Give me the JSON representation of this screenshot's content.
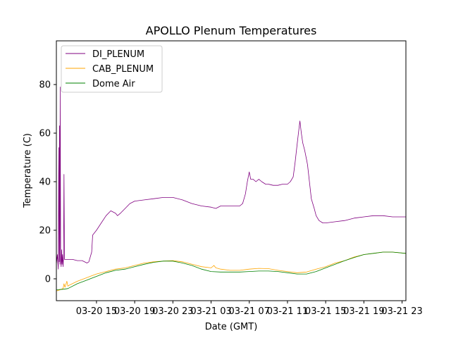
{
  "chart_data": {
    "type": "line",
    "title": "APOLLO Plenum Temperatures",
    "xlabel": "Date (GMT)",
    "ylabel": "Temperature (C)",
    "x_unit": "hours since 03-20 00:00 GMT",
    "xlim": [
      10.8,
      47.4
    ],
    "ylim": [
      -9,
      98
    ],
    "x_ticks": [
      {
        "x": 15,
        "label": "03-20 15"
      },
      {
        "x": 19,
        "label": "03-20 19"
      },
      {
        "x": 23,
        "label": "03-20 23"
      },
      {
        "x": 27,
        "label": "03-21 03"
      },
      {
        "x": 31,
        "label": "03-21 07"
      },
      {
        "x": 35,
        "label": "03-21 11"
      },
      {
        "x": 39,
        "label": "03-21 15"
      },
      {
        "x": 43,
        "label": "03-21 19"
      },
      {
        "x": 47,
        "label": "03-21 23"
      }
    ],
    "y_ticks": [
      {
        "y": 0,
        "label": "0"
      },
      {
        "y": 20,
        "label": "20"
      },
      {
        "y": 40,
        "label": "40"
      },
      {
        "y": 60,
        "label": "60"
      },
      {
        "y": 80,
        "label": "80"
      }
    ],
    "legend_position": "top-left",
    "series": [
      {
        "name": "DI_PLENUM",
        "color": "#800080",
        "points": [
          [
            10.8,
            6
          ],
          [
            10.9,
            10
          ],
          [
            11.0,
            4
          ],
          [
            11.05,
            54
          ],
          [
            11.1,
            7
          ],
          [
            11.13,
            63
          ],
          [
            11.17,
            6
          ],
          [
            11.2,
            79
          ],
          [
            11.25,
            8
          ],
          [
            11.3,
            5
          ],
          [
            11.35,
            12
          ],
          [
            11.4,
            6
          ],
          [
            11.45,
            10
          ],
          [
            11.5,
            5
          ],
          [
            11.55,
            9
          ],
          [
            11.6,
            43
          ],
          [
            11.65,
            8
          ],
          [
            11.8,
            8
          ],
          [
            12.5,
            8
          ],
          [
            13.0,
            7.5
          ],
          [
            13.5,
            7.5
          ],
          [
            14.0,
            6.5
          ],
          [
            14.2,
            7
          ],
          [
            14.5,
            11
          ],
          [
            14.6,
            18
          ],
          [
            15.0,
            20
          ],
          [
            15.5,
            23
          ],
          [
            16.0,
            26
          ],
          [
            16.5,
            28
          ],
          [
            17.0,
            27
          ],
          [
            17.2,
            26
          ],
          [
            17.5,
            27
          ],
          [
            18.0,
            29
          ],
          [
            18.5,
            31
          ],
          [
            19.0,
            32
          ],
          [
            20.0,
            32.5
          ],
          [
            21.0,
            33
          ],
          [
            22.0,
            33.5
          ],
          [
            23.0,
            33.5
          ],
          [
            24.0,
            32.5
          ],
          [
            25.0,
            31
          ],
          [
            26.0,
            30
          ],
          [
            27.0,
            29.5
          ],
          [
            27.5,
            29
          ],
          [
            28.0,
            30
          ],
          [
            29.0,
            30
          ],
          [
            30.0,
            30
          ],
          [
            30.3,
            31
          ],
          [
            30.6,
            35
          ],
          [
            30.8,
            40
          ],
          [
            31.0,
            44
          ],
          [
            31.15,
            41
          ],
          [
            31.4,
            41
          ],
          [
            31.7,
            40
          ],
          [
            32.0,
            41
          ],
          [
            32.3,
            40
          ],
          [
            32.7,
            39
          ],
          [
            33.0,
            39
          ],
          [
            33.5,
            38.5
          ],
          [
            34.0,
            38.5
          ],
          [
            34.5,
            39
          ],
          [
            35.0,
            39
          ],
          [
            35.3,
            40
          ],
          [
            35.6,
            42
          ],
          [
            35.8,
            48
          ],
          [
            36.0,
            55
          ],
          [
            36.15,
            60
          ],
          [
            36.3,
            65
          ],
          [
            36.45,
            60
          ],
          [
            36.6,
            56
          ],
          [
            36.8,
            53
          ],
          [
            37.0,
            49
          ],
          [
            37.1,
            47
          ],
          [
            37.3,
            40
          ],
          [
            37.5,
            33
          ],
          [
            37.8,
            29
          ],
          [
            38.0,
            26
          ],
          [
            38.3,
            24
          ],
          [
            38.7,
            23
          ],
          [
            39.0,
            23
          ],
          [
            40.0,
            23.5
          ],
          [
            41.0,
            24
          ],
          [
            42.0,
            25
          ],
          [
            43.0,
            25.5
          ],
          [
            44.0,
            26
          ],
          [
            45.0,
            26
          ],
          [
            46.0,
            25.5
          ],
          [
            47.4,
            25.5
          ]
        ]
      },
      {
        "name": "CAB_PLENUM",
        "color": "#ffa500",
        "points": [
          [
            10.8,
            -5
          ],
          [
            11.2,
            -4.5
          ],
          [
            11.5,
            -4
          ],
          [
            11.6,
            -2
          ],
          [
            11.7,
            -3.5
          ],
          [
            11.9,
            -1
          ],
          [
            12.0,
            -3
          ],
          [
            12.2,
            -2.5
          ],
          [
            13.0,
            -1
          ],
          [
            14.0,
            0.5
          ],
          [
            15.0,
            2
          ],
          [
            16.0,
            3
          ],
          [
            17.0,
            4
          ],
          [
            18.0,
            4.5
          ],
          [
            19.0,
            5.5
          ],
          [
            20.0,
            6.5
          ],
          [
            21.0,
            7
          ],
          [
            22.0,
            7.3
          ],
          [
            23.0,
            7.5
          ],
          [
            24.0,
            7
          ],
          [
            25.0,
            6
          ],
          [
            26.0,
            5
          ],
          [
            27.0,
            4.5
          ],
          [
            27.3,
            5.5
          ],
          [
            27.5,
            4.5
          ],
          [
            28.0,
            4
          ],
          [
            29.0,
            3.5
          ],
          [
            30.0,
            3.5
          ],
          [
            31.0,
            4
          ],
          [
            32.0,
            4.3
          ],
          [
            33.0,
            4.2
          ],
          [
            34.0,
            3.5
          ],
          [
            35.0,
            3
          ],
          [
            36.0,
            2.5
          ],
          [
            37.0,
            2.8
          ],
          [
            38.0,
            4
          ],
          [
            39.0,
            5
          ],
          [
            40.0,
            6.5
          ],
          [
            41.0,
            7.5
          ],
          [
            42.0,
            9
          ],
          [
            43.0,
            10
          ],
          [
            44.0,
            10.5
          ],
          [
            45.0,
            11
          ],
          [
            46.0,
            11
          ],
          [
            47.4,
            10.5
          ]
        ]
      },
      {
        "name": "Dome Air",
        "color": "#008000",
        "points": [
          [
            10.8,
            -4.5
          ],
          [
            11.5,
            -4.3
          ],
          [
            12.0,
            -4
          ],
          [
            13.0,
            -2
          ],
          [
            14.0,
            -0.5
          ],
          [
            15.0,
            1
          ],
          [
            16.0,
            2.5
          ],
          [
            17.0,
            3.5
          ],
          [
            18.0,
            4
          ],
          [
            19.0,
            5
          ],
          [
            20.0,
            6
          ],
          [
            21.0,
            6.8
          ],
          [
            22.0,
            7.3
          ],
          [
            23.0,
            7.3
          ],
          [
            24.0,
            6.5
          ],
          [
            25.0,
            5.5
          ],
          [
            26.0,
            4
          ],
          [
            27.0,
            3
          ],
          [
            28.0,
            2.8
          ],
          [
            29.0,
            2.8
          ],
          [
            30.0,
            2.8
          ],
          [
            31.0,
            3
          ],
          [
            32.0,
            3.2
          ],
          [
            33.0,
            3.2
          ],
          [
            34.0,
            3
          ],
          [
            35.0,
            2.5
          ],
          [
            36.0,
            2
          ],
          [
            37.0,
            2
          ],
          [
            38.0,
            3
          ],
          [
            39.0,
            4.5
          ],
          [
            40.0,
            6
          ],
          [
            41.0,
            7.5
          ],
          [
            42.0,
            8.8
          ],
          [
            43.0,
            10
          ],
          [
            44.0,
            10.5
          ],
          [
            45.0,
            11
          ],
          [
            46.0,
            11
          ],
          [
            47.4,
            10.5
          ]
        ]
      }
    ]
  }
}
